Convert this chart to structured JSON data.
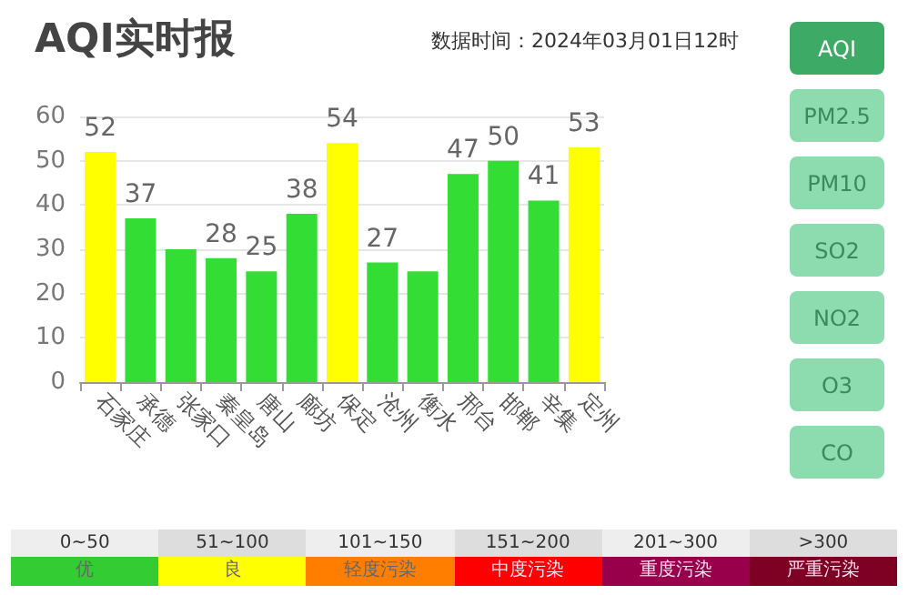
{
  "chart_data": [
    {
      "type": "bar",
      "title": "AQI实时报",
      "subtitle": "数据时间：2024年03月01日12时",
      "categories": [
        "石家庄",
        "承德",
        "张家口",
        "秦皇岛",
        "唐山",
        "廊坊",
        "保定",
        "沧州",
        "衡水",
        "邢台",
        "邯郸",
        "辛集",
        "定州"
      ],
      "values": [
        52,
        37,
        30,
        28,
        25,
        38,
        54,
        27,
        25,
        47,
        50,
        41,
        53
      ],
      "value_labels": [
        "52",
        "37",
        null,
        "28",
        "25",
        "38",
        "54",
        "27",
        null,
        "47",
        "50",
        "41",
        "53"
      ],
      "colors": [
        "#ffff00",
        "#33dd33",
        "#33dd33",
        "#33dd33",
        "#33dd33",
        "#33dd33",
        "#ffff00",
        "#33dd33",
        "#33dd33",
        "#33dd33",
        "#33dd33",
        "#33dd33",
        "#ffff00"
      ],
      "ylim": [
        0,
        60
      ],
      "yticks": [
        0,
        10,
        20,
        30,
        40,
        50,
        60
      ],
      "grid": "y",
      "annotations": [
        "AQI",
        "PM2.5",
        "PM10",
        "SO2",
        "NO2",
        "O3",
        "CO"
      ]
    },
    {
      "type": "other",
      "annotations": [
        "0~50",
        "51~100",
        "101~150",
        "151~200",
        "201~300",
        ">300"
      ],
      "categories": [
        "优",
        "良",
        "轻度污染",
        "中度污染",
        "重度污染",
        "严重污染"
      ],
      "colors": [
        "#33cc33",
        "#ffff00",
        "#ff7e00",
        "#ff0000",
        "#99004c",
        "#7e0023"
      ]
    }
  ]
}
